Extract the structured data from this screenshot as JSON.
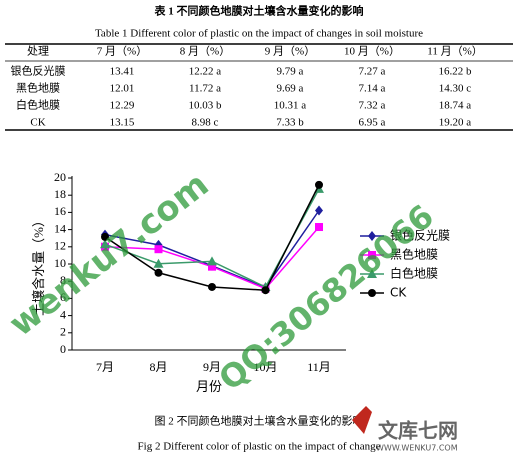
{
  "caption": "表 1 不同颜色地膜对土壤含水量变化的影响",
  "caption_en": "Table 1    Different color of plastic on the impact of changes in soil moisture",
  "table": {
    "header": [
      "处理",
      "7 月（%）",
      "8 月（%）",
      "9 月（%）",
      "10 月（%）",
      "11 月（%）"
    ],
    "rows": [
      [
        "银色反光膜",
        "13.41",
        "12.22  a",
        "9.79  a",
        "7.27  a",
        "16.22  b"
      ],
      [
        "黑色地膜",
        "12.01",
        "11.72  a",
        "9.69  a",
        "7.14  a",
        "14.30  c"
      ],
      [
        "白色地膜",
        "12.29",
        "10.03  b",
        "10.31  a",
        "7.32  a",
        "18.74  a"
      ],
      [
        "CK",
        "13.15",
        "8.98  c",
        "7.33  b",
        "6.95  a",
        "19.20  a"
      ]
    ]
  },
  "chart_data": {
    "type": "line",
    "categories": [
      "7月",
      "8月",
      "9月",
      "10月",
      "11月"
    ],
    "x_label": "月份",
    "y_label": "土壤含水量（%）",
    "ylim": [
      0,
      20
    ],
    "yticks": [
      0,
      2,
      4,
      6,
      8,
      10,
      12,
      14,
      16,
      18,
      20
    ],
    "series": [
      {
        "name": "银色反光膜",
        "color": "#1f1f9e",
        "marker": "diamond",
        "values": [
          13.41,
          12.22,
          9.79,
          7.27,
          16.22
        ]
      },
      {
        "name": "黑色地膜",
        "color": "#ff00ff",
        "marker": "square",
        "values": [
          12.01,
          11.72,
          9.69,
          7.14,
          14.3
        ]
      },
      {
        "name": "白色地膜",
        "color": "#3a9a6a",
        "marker": "triangle",
        "values": [
          12.29,
          10.03,
          10.31,
          7.32,
          18.74
        ]
      },
      {
        "name": "CK",
        "color": "#000000",
        "marker": "circle",
        "values": [
          13.15,
          8.98,
          7.33,
          6.95,
          19.2
        ]
      }
    ]
  },
  "figure_caption": "图 2 不同颜色地膜对土壤含水量变化的影响",
  "figure_caption_en": "Fig 2    Different color of plastic on the impact of change",
  "watermarks": [
    "wenku7.com",
    "QQ:306826066",
    "文库七网",
    "WWW.WENKU7.COM"
  ]
}
